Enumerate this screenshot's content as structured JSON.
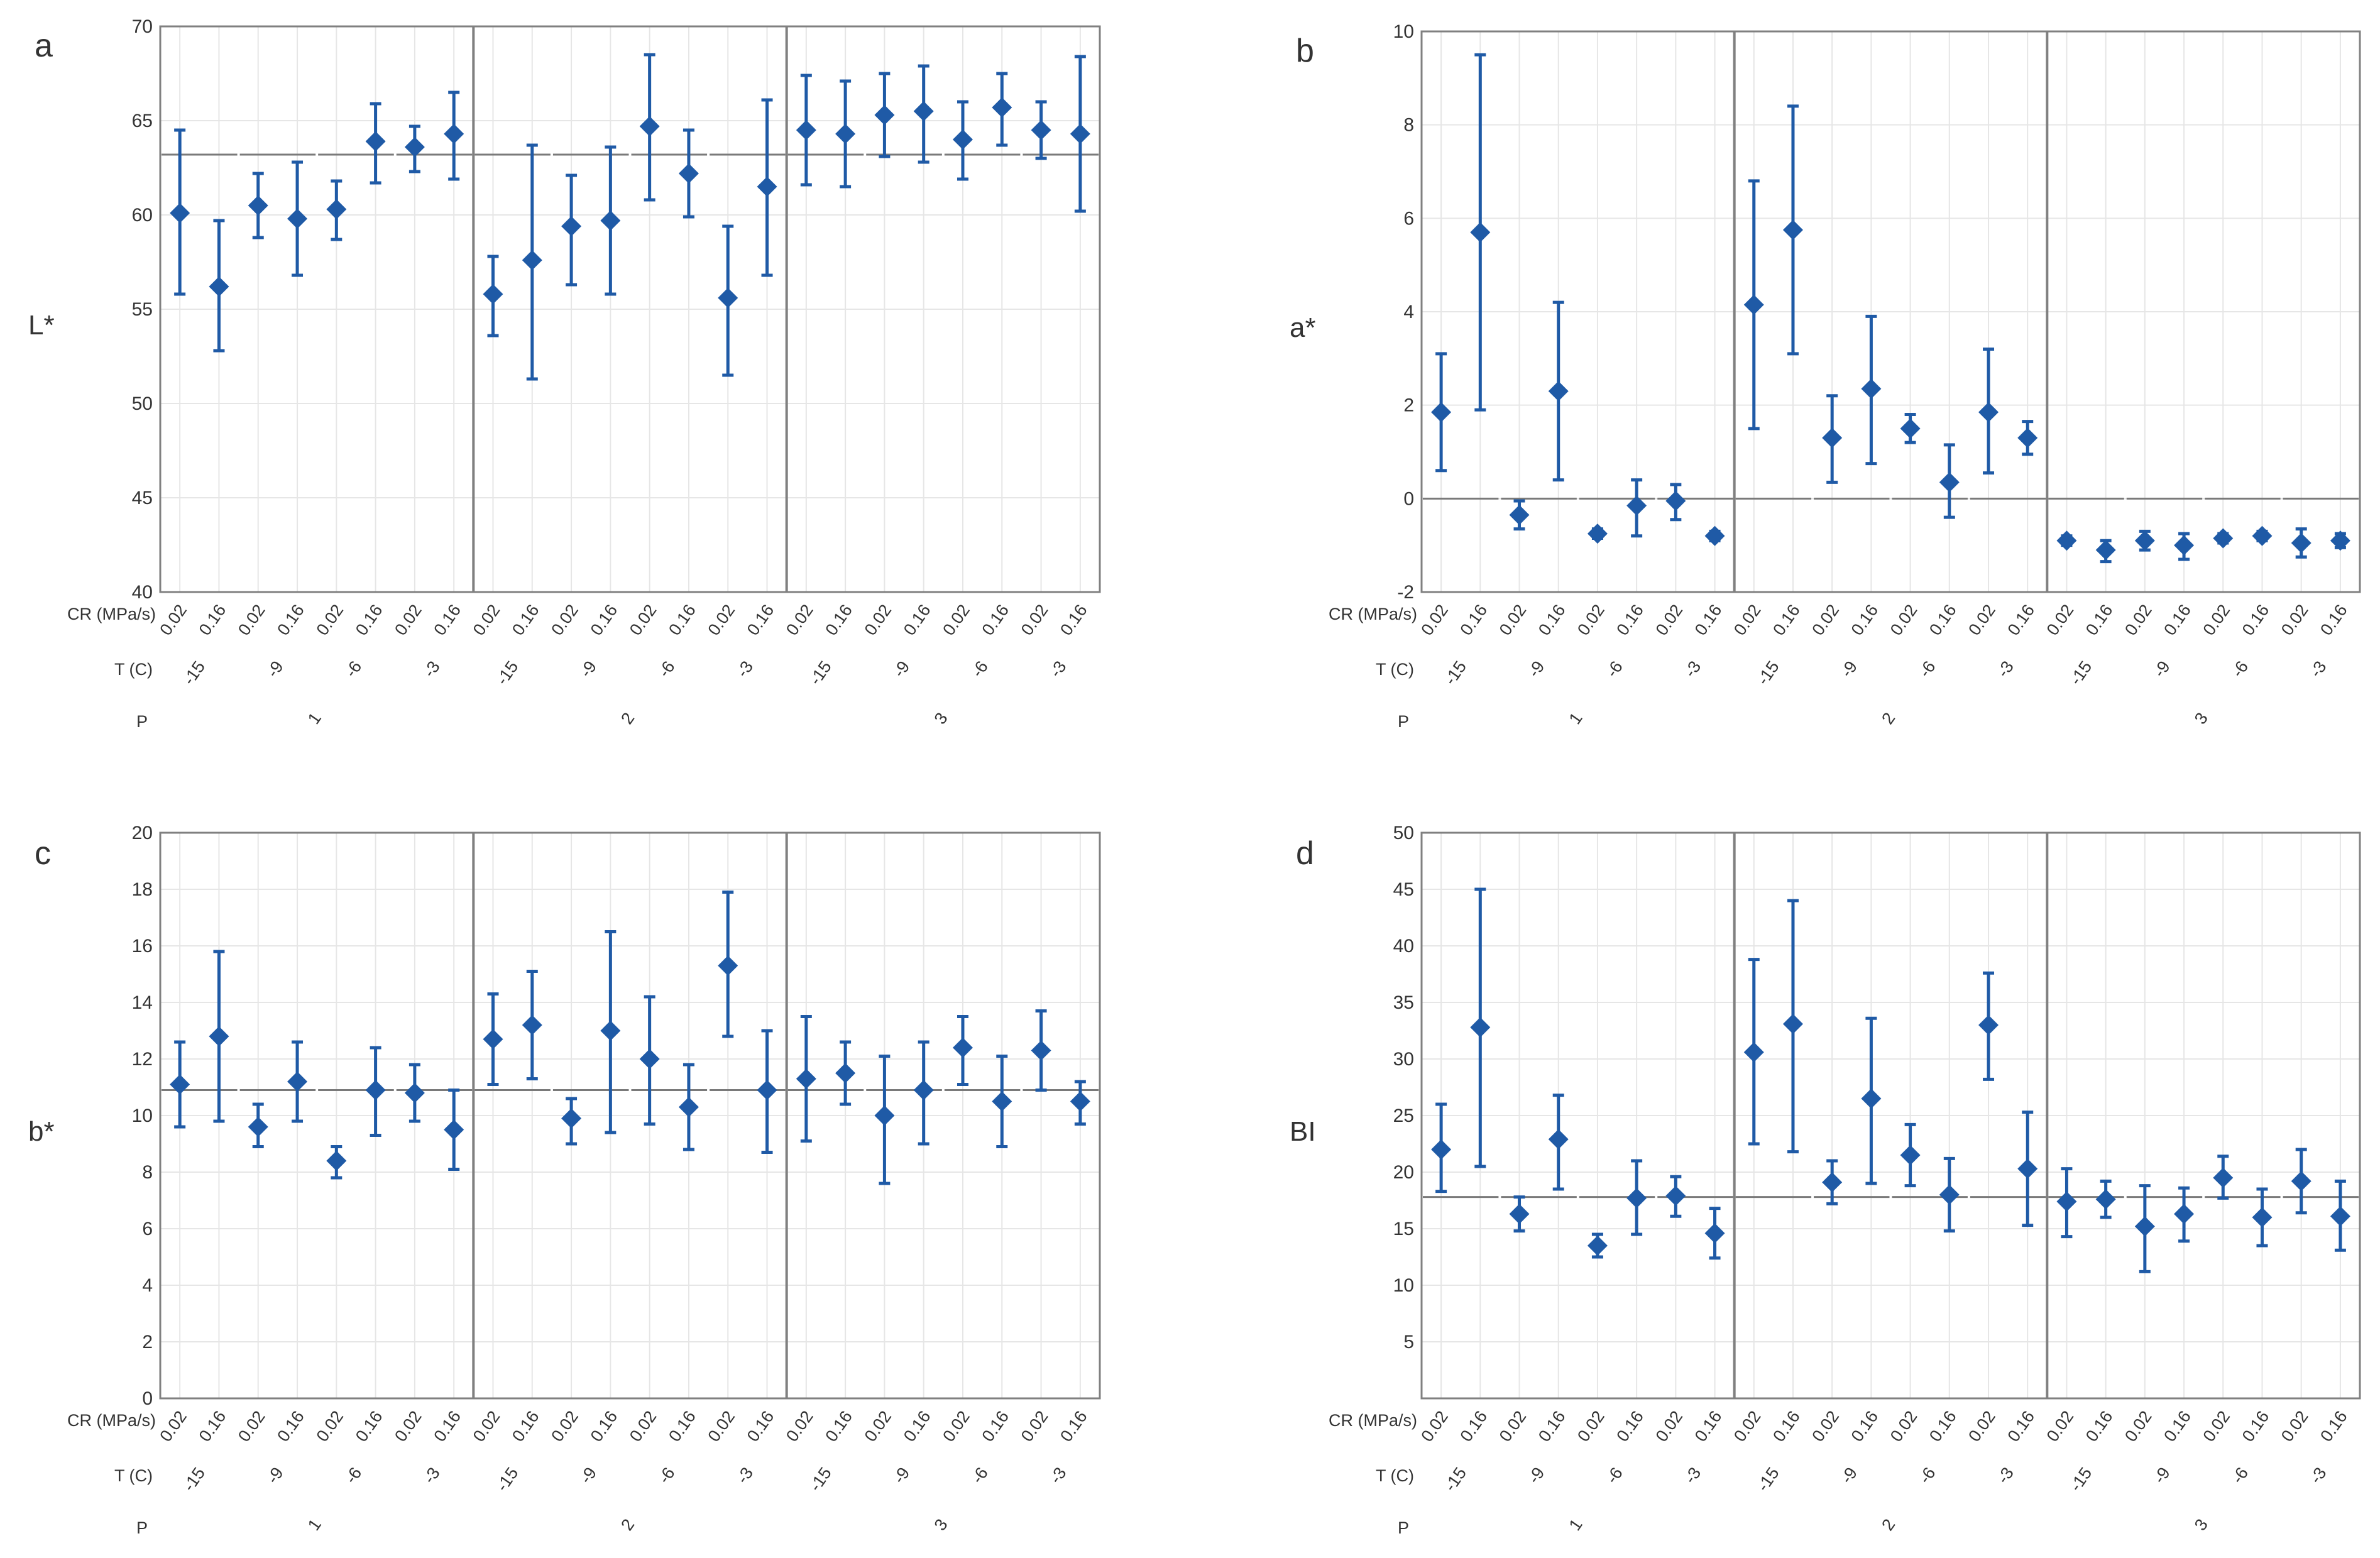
{
  "figure": {
    "factor_labels": {
      "cr": "CR (MPa/s)",
      "t": "T (C)",
      "p": "P"
    },
    "cr_levels": [
      "0.02",
      "0.16"
    ],
    "t_levels": [
      "-15",
      "-9",
      "-6",
      "-3"
    ],
    "p_levels": [
      "1",
      "2",
      "3"
    ]
  },
  "colors": {
    "marker": "#1f5aa6",
    "mean_line": "#7a7a7a",
    "panel_border": "#808080",
    "grid": "#e6e6e6"
  },
  "chart_data": [
    {
      "type": "scatter",
      "panel_label": "a",
      "ylabel": "L*",
      "ylim": [
        40,
        70
      ],
      "yticks": [
        40,
        45,
        50,
        55,
        60,
        65,
        70
      ],
      "mean_lines": [
        63.2,
        63.2,
        63.2,
        63.2,
        63.2,
        63.2,
        63.2,
        63.2,
        63.2,
        63.2,
        63.2,
        63.2
      ],
      "points": [
        [
          60.1,
          55.8,
          64.5
        ],
        [
          56.2,
          52.8,
          59.7
        ],
        [
          60.5,
          58.8,
          62.2
        ],
        [
          59.8,
          56.8,
          62.8
        ],
        [
          60.3,
          58.7,
          61.8
        ],
        [
          63.9,
          61.7,
          65.9
        ],
        [
          63.6,
          62.3,
          64.7
        ],
        [
          64.3,
          61.9,
          66.5
        ],
        [
          55.8,
          53.6,
          57.8
        ],
        [
          57.6,
          51.3,
          63.7
        ],
        [
          59.4,
          56.3,
          62.1
        ],
        [
          59.7,
          55.8,
          63.6
        ],
        [
          64.7,
          60.8,
          68.5
        ],
        [
          62.2,
          59.9,
          64.5
        ],
        [
          55.6,
          51.5,
          59.4
        ],
        [
          61.5,
          56.8,
          66.1
        ],
        [
          64.5,
          61.6,
          67.4
        ],
        [
          64.3,
          61.5,
          67.1
        ],
        [
          65.3,
          63.1,
          67.5
        ],
        [
          65.5,
          62.8,
          67.9
        ],
        [
          64.0,
          61.9,
          66.0
        ],
        [
          65.7,
          63.7,
          67.5
        ],
        [
          64.5,
          63.0,
          66.0
        ],
        [
          64.3,
          60.2,
          68.4
        ]
      ]
    },
    {
      "type": "scatter",
      "panel_label": "b",
      "ylabel": "a*",
      "ylim": [
        -2,
        10
      ],
      "yticks": [
        -2,
        0,
        2,
        4,
        6,
        8,
        10
      ],
      "mean_lines": [
        0,
        0,
        0,
        0,
        0,
        0,
        0,
        0,
        0,
        0,
        0,
        0
      ],
      "points": [
        [
          1.85,
          0.6,
          3.1
        ],
        [
          5.7,
          1.9,
          9.5
        ],
        [
          -0.35,
          -0.65,
          -0.05
        ],
        [
          2.3,
          0.4,
          4.2
        ],
        [
          -0.75,
          -0.85,
          -0.65
        ],
        [
          -0.15,
          -0.8,
          0.4
        ],
        [
          -0.05,
          -0.45,
          0.3
        ],
        [
          -0.8,
          -0.9,
          -0.7
        ],
        [
          4.15,
          1.5,
          6.8
        ],
        [
          5.75,
          3.1,
          8.4
        ],
        [
          1.3,
          0.35,
          2.2
        ],
        [
          2.35,
          0.75,
          3.9
        ],
        [
          1.5,
          1.2,
          1.8
        ],
        [
          0.35,
          -0.4,
          1.15
        ],
        [
          1.85,
          0.55,
          3.2
        ],
        [
          1.3,
          0.95,
          1.65
        ],
        [
          -0.9,
          -1.0,
          -0.8
        ],
        [
          -1.1,
          -1.35,
          -0.9
        ],
        [
          -0.9,
          -1.1,
          -0.7
        ],
        [
          -1.0,
          -1.3,
          -0.75
        ],
        [
          -0.85,
          -0.95,
          -0.75
        ],
        [
          -0.8,
          -0.9,
          -0.7
        ],
        [
          -0.95,
          -1.25,
          -0.65
        ],
        [
          -0.9,
          -1.05,
          -0.75
        ]
      ]
    },
    {
      "type": "scatter",
      "panel_label": "c",
      "ylabel": "b*",
      "ylim": [
        0,
        20
      ],
      "yticks": [
        0,
        2,
        4,
        6,
        8,
        10,
        12,
        14,
        16,
        18,
        20
      ],
      "mean_lines": [
        10.9,
        10.9,
        10.9,
        10.9,
        10.9,
        10.9,
        10.9,
        10.9,
        10.9,
        10.9,
        10.9,
        10.9
      ],
      "points": [
        [
          11.1,
          9.6,
          12.6
        ],
        [
          12.8,
          9.8,
          15.8
        ],
        [
          9.6,
          8.9,
          10.4
        ],
        [
          11.2,
          9.8,
          12.6
        ],
        [
          8.4,
          7.8,
          8.9
        ],
        [
          10.9,
          9.3,
          12.4
        ],
        [
          10.8,
          9.8,
          11.8
        ],
        [
          9.5,
          8.1,
          10.9
        ],
        [
          12.7,
          11.1,
          14.3
        ],
        [
          13.2,
          11.3,
          15.1
        ],
        [
          9.9,
          9.0,
          10.6
        ],
        [
          13.0,
          9.4,
          16.5
        ],
        [
          12.0,
          9.7,
          14.2
        ],
        [
          10.3,
          8.8,
          11.8
        ],
        [
          15.3,
          12.8,
          17.9
        ],
        [
          10.9,
          8.7,
          13.0
        ],
        [
          11.3,
          9.1,
          13.5
        ],
        [
          11.5,
          10.4,
          12.6
        ],
        [
          10.0,
          7.6,
          12.1
        ],
        [
          10.9,
          9.0,
          12.6
        ],
        [
          12.4,
          11.1,
          13.5
        ],
        [
          10.5,
          8.9,
          12.1
        ],
        [
          12.3,
          10.9,
          13.7
        ],
        [
          10.5,
          9.7,
          11.2
        ]
      ]
    },
    {
      "type": "scatter",
      "panel_label": "d",
      "ylabel": "BI",
      "ylim": [
        0,
        50
      ],
      "yticks": [
        5,
        10,
        15,
        20,
        25,
        30,
        35,
        40,
        45,
        50
      ],
      "mean_lines": [
        17.8,
        17.8,
        17.8,
        17.8,
        17.8,
        17.8,
        17.8,
        17.8,
        17.8,
        17.8,
        17.8,
        17.8
      ],
      "points": [
        [
          22.0,
          18.3,
          26.0
        ],
        [
          32.8,
          20.5,
          45.0
        ],
        [
          16.3,
          14.8,
          17.8
        ],
        [
          22.9,
          18.5,
          26.8
        ],
        [
          13.5,
          12.5,
          14.5
        ],
        [
          17.7,
          14.5,
          21.0
        ],
        [
          17.9,
          16.1,
          19.6
        ],
        [
          14.6,
          12.4,
          16.8
        ],
        [
          30.6,
          22.5,
          38.8
        ],
        [
          33.1,
          21.8,
          44.0
        ],
        [
          19.1,
          17.2,
          21.0
        ],
        [
          26.5,
          19.0,
          33.6
        ],
        [
          21.5,
          18.8,
          24.2
        ],
        [
          18.0,
          14.8,
          21.2
        ],
        [
          33.0,
          28.2,
          37.6
        ],
        [
          20.3,
          15.3,
          25.3
        ],
        [
          17.4,
          14.3,
          20.3
        ],
        [
          17.6,
          16.0,
          19.2
        ],
        [
          15.2,
          11.2,
          18.8
        ],
        [
          16.3,
          13.9,
          18.6
        ],
        [
          19.5,
          17.7,
          21.4
        ],
        [
          16.0,
          13.5,
          18.5
        ],
        [
          19.2,
          16.4,
          22.0
        ],
        [
          16.1,
          13.1,
          19.2
        ]
      ]
    }
  ]
}
